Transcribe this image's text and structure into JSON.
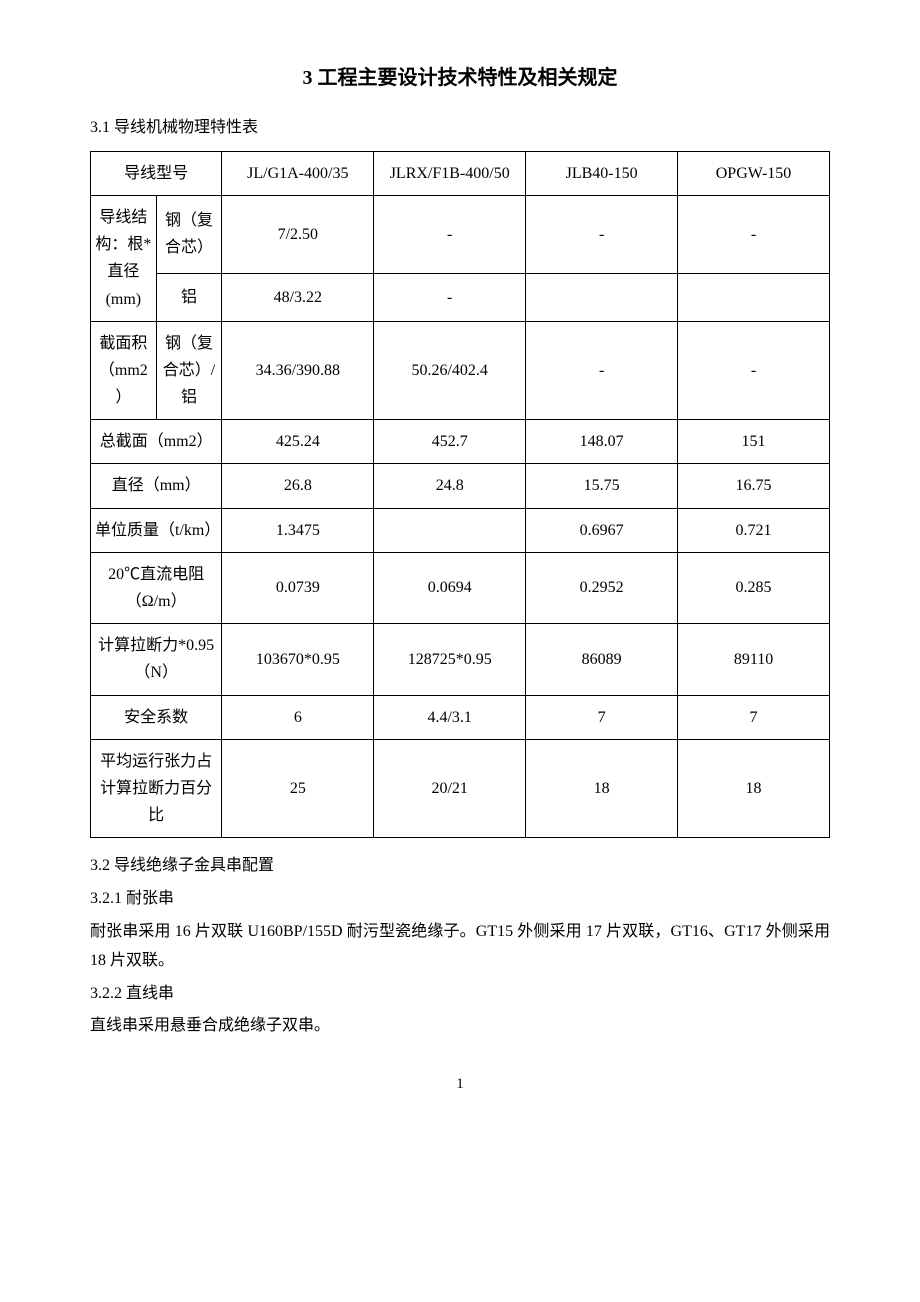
{
  "title": "3  工程主要设计技术特性及相关规定",
  "section_3_1": "3.1  导线机械物理特性表",
  "table": {
    "header": {
      "label": "导线型号",
      "c1": "JL/G1A-400/35",
      "c2": "JLRX/F1B-400/50",
      "c3": "JLB40-150",
      "c4": "OPGW-150"
    },
    "rows": [
      {
        "g1": "导线结构：根*直径(mm)",
        "g2": "钢（复合芯）",
        "v": [
          "7/2.50",
          "-",
          "-",
          "-"
        ]
      },
      {
        "g2": "铝",
        "v": [
          "48/3.22",
          "-",
          "",
          ""
        ]
      },
      {
        "g1": "截面积（mm2）",
        "g2": "钢（复合芯）/铝",
        "v": [
          "34.36/390.88",
          "50.26/402.4",
          "-",
          "-"
        ]
      },
      {
        "g12": "总截面（mm2）",
        "v": [
          "425.24",
          "452.7",
          "148.07",
          "151"
        ]
      },
      {
        "g12": "直径（mm）",
        "v": [
          "26.8",
          "24.8",
          "15.75",
          "16.75"
        ]
      },
      {
        "g12": "单位质量（t/km）",
        "v": [
          "1.3475",
          "",
          "0.6967",
          "0.721"
        ]
      },
      {
        "g12": "20℃直流电阻（Ω/m）",
        "v": [
          "0.0739",
          "0.0694",
          "0.2952",
          "0.285"
        ]
      },
      {
        "g12": "计算拉断力*0.95（N）",
        "v": [
          "103670*0.95",
          "128725*0.95",
          "86089",
          "89110"
        ]
      },
      {
        "g12": "安全系数",
        "v": [
          "6",
          "4.4/3.1",
          "7",
          "7"
        ]
      },
      {
        "g12": "平均运行张力占计算拉断力百分比",
        "v": [
          "25",
          "20/21",
          "18",
          "18"
        ]
      }
    ]
  },
  "section_3_2": "3.2 导线绝缘子金具串配置",
  "section_3_2_1": "3.2.1 耐张串",
  "para_3_2_1": "耐张串采用 16 片双联 U160BP/155D 耐污型瓷绝缘子。GT15 外侧采用 17 片双联，GT16、GT17 外侧采用 18 片双联。",
  "section_3_2_2": "3.2.2 直线串",
  "para_3_2_2": "直线串采用悬垂合成绝缘子双串。",
  "page_number": "1",
  "style": {
    "background_color": "#ffffff",
    "text_color": "#000000",
    "border_color": "#000000",
    "title_fontsize": 20,
    "body_fontsize": 16,
    "font_family": "SimSun"
  }
}
